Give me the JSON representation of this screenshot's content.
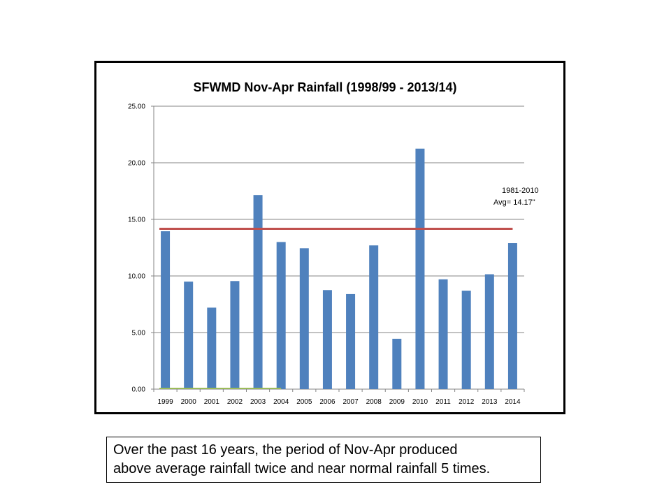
{
  "chart_data": {
    "type": "bar",
    "title": "SFWMD Nov-Apr Rainfall  (1998/99 - 2013/14)",
    "categories": [
      "1999",
      "2000",
      "2001",
      "2002",
      "2003",
      "2004",
      "2005",
      "2006",
      "2007",
      "2008",
      "2009",
      "2010",
      "2011",
      "2012",
      "2013",
      "2014"
    ],
    "values": [
      13.95,
      9.5,
      7.2,
      9.55,
      17.15,
      13.0,
      12.45,
      8.75,
      8.4,
      12.7,
      4.45,
      21.25,
      9.7,
      8.7,
      10.15,
      12.9
    ],
    "ylim": [
      0,
      25
    ],
    "yticks": [
      "0.00",
      "5.00",
      "10.00",
      "15.00",
      "20.00",
      "25.00"
    ],
    "ytick_values": [
      0,
      5,
      10,
      15,
      20,
      25
    ],
    "grid": true,
    "bar_color": "#4f81bd",
    "average_line": {
      "value": 14.17,
      "color": "#c0504d",
      "label_line1": "1981-2010",
      "label_line2": "Avg= 14.17\""
    },
    "baseline_highlight": {
      "color": "#9bbb59",
      "from_category": "1999",
      "to_category": "2004"
    }
  },
  "caption": {
    "line1": "Over the past 16 years, the period of Nov-Apr produced",
    "line2": "above average rainfall twice and near normal rainfall 5 times."
  }
}
